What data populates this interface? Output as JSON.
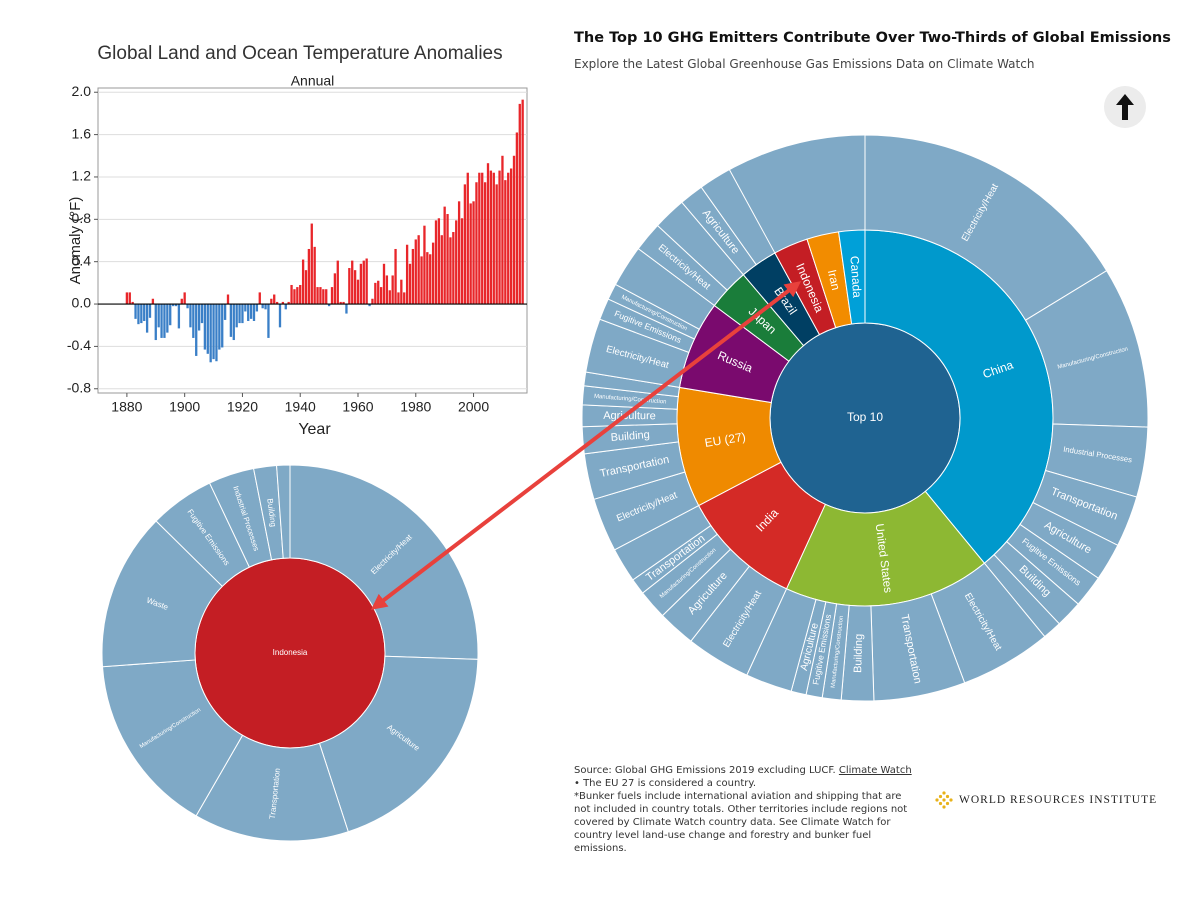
{
  "chart_data": [
    {
      "type": "bar",
      "title": "Global Land and Ocean Temperature Anomalies",
      "subtitle": "Annual",
      "xlabel": "Year",
      "ylabel": "Anomaly (°F)",
      "x": [
        1880,
        1881,
        1882,
        1883,
        1884,
        1885,
        1886,
        1887,
        1888,
        1889,
        1890,
        1891,
        1892,
        1893,
        1894,
        1895,
        1896,
        1897,
        1898,
        1899,
        1900,
        1901,
        1902,
        1903,
        1904,
        1905,
        1906,
        1907,
        1908,
        1909,
        1910,
        1911,
        1912,
        1913,
        1914,
        1915,
        1916,
        1917,
        1918,
        1919,
        1920,
        1921,
        1922,
        1923,
        1924,
        1925,
        1926,
        1927,
        1928,
        1929,
        1930,
        1931,
        1932,
        1933,
        1934,
        1935,
        1936,
        1937,
        1938,
        1939,
        1940,
        1941,
        1942,
        1943,
        1944,
        1945,
        1946,
        1947,
        1948,
        1949,
        1950,
        1951,
        1952,
        1953,
        1954,
        1955,
        1956,
        1957,
        1958,
        1959,
        1960,
        1961,
        1962,
        1963,
        1964,
        1965,
        1966,
        1967,
        1968,
        1969,
        1970,
        1971,
        1972,
        1973,
        1974,
        1975,
        1976,
        1977,
        1978,
        1979,
        1980,
        1981,
        1982,
        1983,
        1984,
        1985,
        1986,
        1987,
        1988,
        1989,
        1990,
        1991,
        1992,
        1993,
        1994,
        1995,
        1996,
        1997,
        1998,
        1999,
        2000,
        2001,
        2002,
        2003,
        2004,
        2005,
        2006,
        2007,
        2008,
        2009,
        2010,
        2011,
        2012,
        2013,
        2014,
        2015,
        2016,
        2017
      ],
      "values": [
        0.11,
        0.11,
        0.02,
        -0.14,
        -0.19,
        -0.18,
        -0.16,
        -0.27,
        -0.13,
        0.05,
        -0.34,
        -0.22,
        -0.32,
        -0.32,
        -0.27,
        -0.2,
        -0.02,
        -0.02,
        -0.23,
        0.05,
        0.11,
        -0.04,
        -0.22,
        -0.32,
        -0.49,
        -0.25,
        -0.18,
        -0.43,
        -0.47,
        -0.55,
        -0.52,
        -0.54,
        -0.43,
        -0.41,
        -0.15,
        0.09,
        -0.31,
        -0.34,
        -0.22,
        -0.18,
        -0.18,
        -0.07,
        -0.16,
        -0.14,
        -0.16,
        -0.07,
        0.11,
        -0.04,
        -0.05,
        -0.32,
        0.05,
        0.09,
        0.02,
        -0.22,
        0.02,
        -0.05,
        0.02,
        0.18,
        0.14,
        0.16,
        0.18,
        0.42,
        0.32,
        0.52,
        0.76,
        0.54,
        0.16,
        0.16,
        0.14,
        0.14,
        -0.02,
        0.16,
        0.29,
        0.41,
        0.02,
        0.02,
        -0.09,
        0.34,
        0.41,
        0.32,
        0.23,
        0.38,
        0.41,
        0.43,
        -0.02,
        0.05,
        0.2,
        0.22,
        0.16,
        0.38,
        0.27,
        0.13,
        0.27,
        0.52,
        0.11,
        0.23,
        0.11,
        0.56,
        0.38,
        0.52,
        0.61,
        0.65,
        0.45,
        0.74,
        0.49,
        0.47,
        0.58,
        0.79,
        0.81,
        0.65,
        0.92,
        0.85,
        0.63,
        0.68,
        0.79,
        0.97,
        0.81,
        1.13,
        1.24,
        0.95,
        0.97,
        1.15,
        1.24,
        1.24,
        1.15,
        1.33,
        1.26,
        1.24,
        1.13,
        1.26,
        1.4,
        1.17,
        1.24,
        1.28,
        1.4,
        1.62,
        1.89,
        1.93
      ],
      "pos_color": "#e8262a",
      "neg_color": "#3a7fc7",
      "xlim": [
        1870,
        2018.5
      ],
      "xticks": [
        1880,
        1900,
        1920,
        1940,
        1960,
        1980,
        2000
      ],
      "ylim": [
        -0.84,
        2.04
      ],
      "yticks": [
        -0.8,
        -0.4,
        {
          "value": 0,
          "label": "0.0"
        },
        0.4,
        0.8,
        1.2,
        1.6,
        {
          "value": 2,
          "label": "2.0"
        }
      ],
      "grid": true
    },
    {
      "type": "sunburst",
      "title": "The Top 10 GHG Emitters Contribute Over Two-Thirds of Global Emissions",
      "subtitle": "Explore the Latest Global Greenhouse Gas Emissions Data on Climate Watch",
      "center_label": "Top 10",
      "center_color": "#1f6391",
      "sector_color": "#7fa9c6",
      "children": [
        {
          "name": "China",
          "color": "#0099cc",
          "value": 12705,
          "children": [
            {
              "name": "Electricity/Heat",
              "value": 5300
            },
            {
              "name": "Manufacturing/Construction",
              "value": 3000
            },
            {
              "name": "Industrial Processes",
              "value": 1300
            },
            {
              "name": "Transportation",
              "value": 950
            },
            {
              "name": "Agriculture",
              "value": 700
            },
            {
              "name": "Fugitive Emissions",
              "value": 600
            },
            {
              "name": "Building",
              "value": 500
            },
            {
              "name": null,
              "value": 355
            }
          ]
        },
        {
          "name": "United States",
          "color": "#8db833",
          "value": 5794,
          "children": [
            {
              "name": "Electricity/Heat",
              "value": 1700
            },
            {
              "name": "Transportation",
              "value": 1700
            },
            {
              "name": "Building",
              "value": 600
            },
            {
              "name": "Manufacturing/Construction",
              "value": 350
            },
            {
              "name": "Fugitive Emissions",
              "value": 300
            },
            {
              "name": "Agriculture",
              "value": 280
            },
            {
              "name": null,
              "value": 864
            }
          ]
        },
        {
          "name": "India",
          "color": "#d42a26",
          "value": 3394,
          "children": [
            {
              "name": "Electricity/Heat",
              "value": 1200
            },
            {
              "name": "Agriculture",
              "value": 700
            },
            {
              "name": "Manufacturing/Construction",
              "value": 550
            },
            {
              "name": "Transportation",
              "value": 300
            },
            {
              "name": null,
              "value": 644
            }
          ]
        },
        {
          "name": "EU (27)",
          "color": "#ef8a00",
          "value": 3355,
          "children": [
            {
              "name": "Electricity/Heat",
              "value": 1000
            },
            {
              "name": "Transportation",
              "value": 850
            },
            {
              "name": "Building",
              "value": 500
            },
            {
              "name": "Agriculture",
              "value": 400
            },
            {
              "name": "Manufacturing/Construction",
              "value": 350
            },
            {
              "name": null,
              "value": 255
            }
          ]
        },
        {
          "name": "Russia",
          "color": "#7a0a6e",
          "value": 2477,
          "children": [
            {
              "name": "Electricity/Heat",
              "value": 1000
            },
            {
              "name": "Fugitive Emissions",
              "value": 400
            },
            {
              "name": "Manufacturing/Construction",
              "value": 300
            },
            {
              "name": null,
              "value": 777
            }
          ]
        },
        {
          "name": "Japan",
          "color": "#1a7d3a",
          "value": 1166,
          "children": [
            {
              "name": "Electricity/Heat",
              "value": 550
            },
            {
              "name": null,
              "value": 616
            }
          ]
        },
        {
          "name": "Brazil",
          "color": "#003f63",
          "value": 1057,
          "children": [
            {
              "name": "Agriculture",
              "value": 450
            },
            {
              "name": null,
              "value": 607
            }
          ]
        },
        {
          "name": "Indonesia",
          "color": "#c41e24",
          "value": 965
        },
        {
          "name": "Iran",
          "color": "#f28c00",
          "value": 893
        },
        {
          "name": "Canada",
          "color": "#00a0d8",
          "value": 730
        }
      ],
      "source_prefix": "Source: Global GHG Emissions 2019 excluding LUCF.",
      "source_link": "Climate Watch",
      "source_suffix": "• The EU 27 is considered a country.",
      "footnote": "*Bunker fuels include international aviation and shipping that are not included in country totals. Other territories include regions not covered by Climate Watch country data. See Climate Watch for country level land-use change and forestry and bunker fuel emissions.",
      "logo_text": "WORLD RESOURCES INSTITUTE"
    },
    {
      "type": "sunburst",
      "center_label": "Indonesia",
      "center_color": "#c41e24",
      "sector_color": "#7fa9c6",
      "children": [
        {
          "name": "Electricity/Heat",
          "value": 247
        },
        {
          "name": "Agriculture",
          "value": 188
        },
        {
          "name": "Transportation",
          "value": 129
        },
        {
          "name": "Manufacturing/Construction",
          "value": 150
        },
        {
          "name": "Waste",
          "value": 131
        },
        {
          "name": "Fugitive Emissions",
          "value": 54
        },
        {
          "name": "Industrial Processes",
          "value": 38
        },
        {
          "name": "Building",
          "value": 19
        },
        {
          "name": null,
          "value": 11
        }
      ]
    }
  ]
}
